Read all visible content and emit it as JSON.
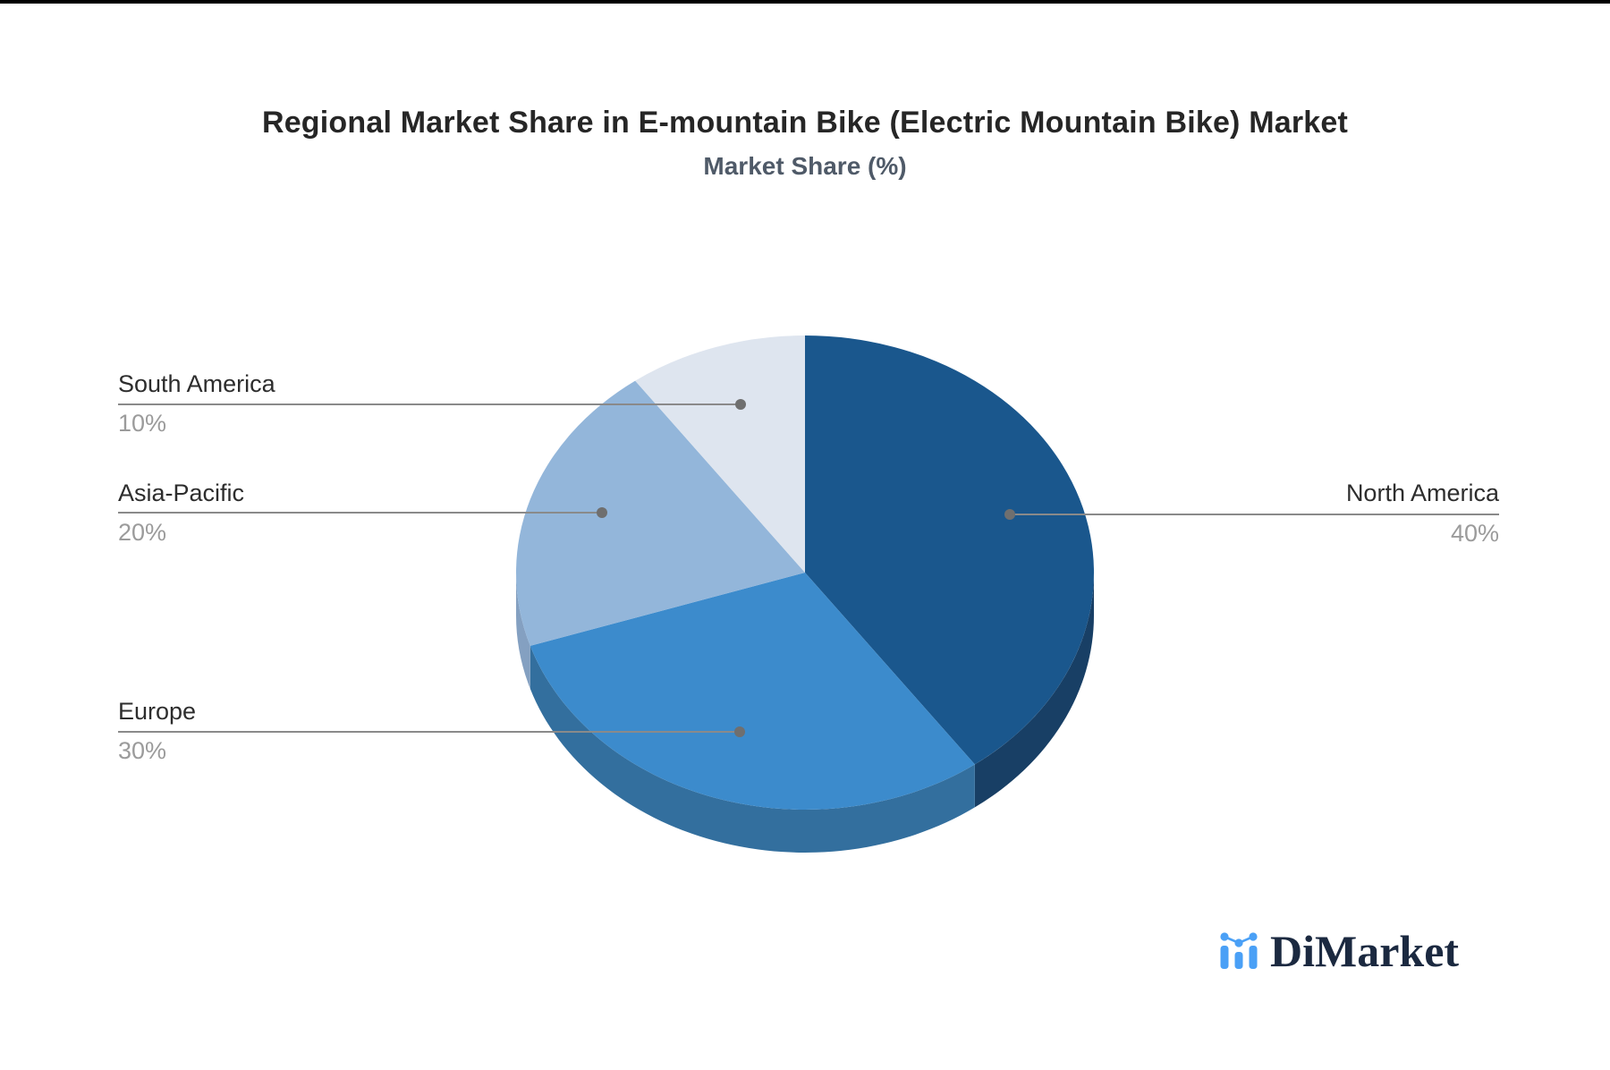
{
  "header": {
    "title": "Regional Market Share in E-mountain Bike (Electric Mountain Bike) Market",
    "subtitle": "Market Share (%)"
  },
  "chart_data": {
    "type": "pie",
    "style": "3d-extruded",
    "title": "Regional Market Share in E-mountain Bike (Electric Mountain Bike) Market",
    "subtitle": "Market Share (%)",
    "categories": [
      "North America",
      "Europe",
      "Asia-Pacific",
      "South America"
    ],
    "values": [
      40,
      30,
      20,
      10
    ],
    "unit": "%",
    "start_angle": "12 o'clock",
    "direction": "clockwise",
    "ids": [
      "north-america",
      "europe",
      "asia-pacific",
      "south-america"
    ],
    "colors": [
      "#1a578d",
      "#3c8bcc",
      "#93b6da",
      "#dee5ef"
    ],
    "side_colors": [
      "#183f65",
      "#336f9e",
      "#84a0c1",
      "#c9d4e4"
    ],
    "leader_line_color": "#8a8a8a",
    "leader_dot_color": "#6f6f6f"
  },
  "callouts": [
    {
      "id": "south-america",
      "name": "South America",
      "value": "10%"
    },
    {
      "id": "asia-pacific",
      "name": "Asia-Pacific",
      "value": "20%"
    },
    {
      "id": "europe",
      "name": "Europe",
      "value": "30%"
    },
    {
      "id": "north-america",
      "name": "North America",
      "value": "40%"
    }
  ],
  "brand": {
    "logo_text": "DiMarket",
    "logo_icon": "mini-bar-line-chart-icon",
    "text_color": "#1b2940",
    "icon_color": "#4aa0f6"
  }
}
